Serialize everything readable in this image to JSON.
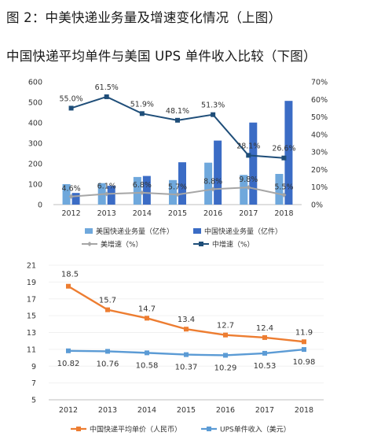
{
  "titles": {
    "figure_title": "图 2：中美快递业务量及增速变化情况（上图）",
    "figure_subtitle": "中国快递平均单件与美国 UPS 单件收入比较（下图）"
  },
  "colors": {
    "us_volume": "#6fa8dc",
    "cn_volume": "#3b6cc5",
    "us_growth": "#a6a6a6",
    "cn_growth": "#1f4e79",
    "cn_price": "#ed7d31",
    "ups_revenue": "#5b9bd5"
  },
  "chart_data": [
    {
      "type": "bar",
      "categories": [
        "2012",
        "2013",
        "2014",
        "2015",
        "2016",
        "2017",
        "2018"
      ],
      "ylim": [
        0,
        600
      ],
      "yticks": [
        "0",
        "100",
        "200",
        "300",
        "400",
        "500",
        "600"
      ],
      "y2lim": [
        0,
        70
      ],
      "y2ticks": [
        "0%",
        "10%",
        "20%",
        "30%",
        "40%",
        "50%",
        "60%",
        "70%"
      ],
      "series": [
        {
          "name": "美国快递业务量（亿件）",
          "kind": "bar",
          "values": [
            100,
            105,
            135,
            120,
            205,
            145,
            150
          ]
        },
        {
          "name": "中国快递业务量（亿件）",
          "kind": "bar",
          "values": [
            57,
            92,
            140,
            207,
            313,
            401,
            507
          ]
        },
        {
          "name": "美增速（%）",
          "kind": "line",
          "axis": "right",
          "values": [
            4.6,
            6.1,
            6.8,
            5.7,
            8.8,
            9.8,
            5.5
          ],
          "labels": [
            "4.6%",
            "6.1%",
            "6.8%",
            "5.7%",
            "8.8%",
            "9.8%",
            "5.5%"
          ]
        },
        {
          "name": "中增速（%）",
          "kind": "line",
          "axis": "right",
          "values": [
            55.0,
            61.5,
            51.9,
            48.1,
            51.3,
            28.1,
            26.6
          ],
          "labels": [
            "55.0%",
            "61.5%",
            "51.9%",
            "48.1%",
            "51.3%",
            "28.1%",
            "26.6%"
          ]
        }
      ],
      "legend": "bottom"
    },
    {
      "type": "line",
      "categories": [
        "2012",
        "2013",
        "2014",
        "2015",
        "2016",
        "2017",
        "2018"
      ],
      "ylim": [
        5,
        21
      ],
      "yticks": [
        "5",
        "7",
        "9",
        "11",
        "13",
        "15",
        "17",
        "19",
        "21"
      ],
      "series": [
        {
          "name": "中国快递平均单价（人民币）",
          "values": [
            18.5,
            15.7,
            14.7,
            13.4,
            12.7,
            12.4,
            11.9
          ],
          "labels": [
            "18.5",
            "15.7",
            "14.7",
            "13.4",
            "12.7",
            "12.4",
            "11.9"
          ]
        },
        {
          "name": "UPS单件收入（美元）",
          "values": [
            10.82,
            10.76,
            10.58,
            10.37,
            10.29,
            10.53,
            10.98
          ],
          "labels": [
            "10.82",
            "10.76",
            "10.58",
            "10.37",
            "10.29",
            "10.53",
            "10.98"
          ]
        }
      ],
      "legend": "bottom"
    }
  ]
}
